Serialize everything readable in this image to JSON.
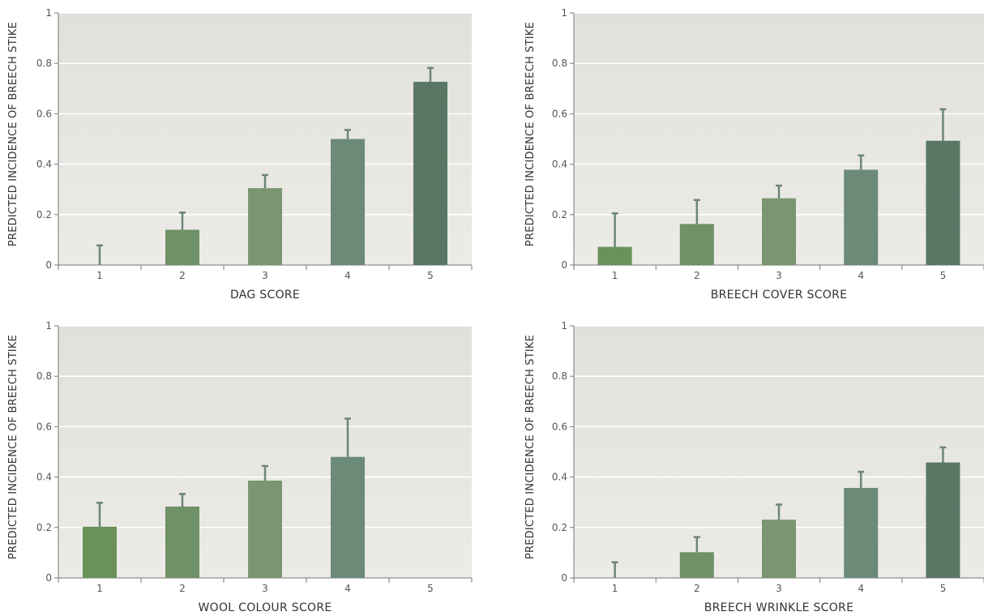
{
  "chart_data": [
    {
      "type": "bar",
      "categories": [
        "1",
        "2",
        "3",
        "4",
        "5"
      ],
      "values": [
        0,
        0.14,
        0.305,
        0.5,
        0.727
      ],
      "errors": [
        0.078,
        0.068,
        0.052,
        0.036,
        0.055
      ],
      "xlabel": "DAG SCORE",
      "ylabel": "PREDICTED INCIDENCE OF BREECH STIKE",
      "ylim": [
        0,
        1
      ],
      "yticks": [
        "0",
        "0.2",
        "0.4",
        "0.6",
        "0.8",
        "1"
      ],
      "grid": true
    },
    {
      "type": "bar",
      "categories": [
        "1",
        "2",
        "3",
        "4",
        "5"
      ],
      "values": [
        0.072,
        0.163,
        0.265,
        0.378,
        0.493
      ],
      "errors": [
        0.133,
        0.095,
        0.05,
        0.057,
        0.125
      ],
      "xlabel": "BREECH COVER SCORE",
      "ylabel": "PREDICTED INCIDENCE OF BREECH STIKE",
      "ylim": [
        0,
        1
      ],
      "yticks": [
        "0",
        "0.2",
        "0.4",
        "0.6",
        "0.8",
        "1"
      ],
      "grid": true
    },
    {
      "type": "bar",
      "categories": [
        "1",
        "2",
        "3",
        "4",
        "5"
      ],
      "values": [
        0.203,
        0.283,
        0.386,
        0.48,
        null
      ],
      "errors": [
        0.095,
        0.05,
        0.058,
        0.152,
        null
      ],
      "xlabel": "WOOL COLOUR SCORE",
      "ylabel": "PREDICTED INCIDENCE OF BREECH STIKE",
      "ylim": [
        0,
        1
      ],
      "yticks": [
        "0",
        "0.2",
        "0.4",
        "0.6",
        "0.8",
        "1"
      ],
      "grid": true
    },
    {
      "type": "bar",
      "categories": [
        "1",
        "2",
        "3",
        "4",
        "5"
      ],
      "values": [
        0,
        0.102,
        0.231,
        0.357,
        0.458
      ],
      "errors": [
        0.062,
        0.06,
        0.06,
        0.064,
        0.06
      ],
      "xlabel": "BREECH WRINKLE SCORE",
      "ylabel": "PREDICTED INCIDENCE OF BREECH STIKE",
      "ylim": [
        0,
        1
      ],
      "yticks": [
        "0",
        "0.2",
        "0.4",
        "0.6",
        "0.8",
        "1"
      ],
      "grid": true
    }
  ],
  "colors": {
    "bars": [
      "#6a9158",
      "#6f9167",
      "#7a9670",
      "#6b8a78",
      "#5a7765"
    ],
    "error_bar": "#6c8577",
    "panel_top": "#e2e0da",
    "panel_bottom": "#ecebe7",
    "grid": "#ffffff",
    "axis": "#777777"
  }
}
